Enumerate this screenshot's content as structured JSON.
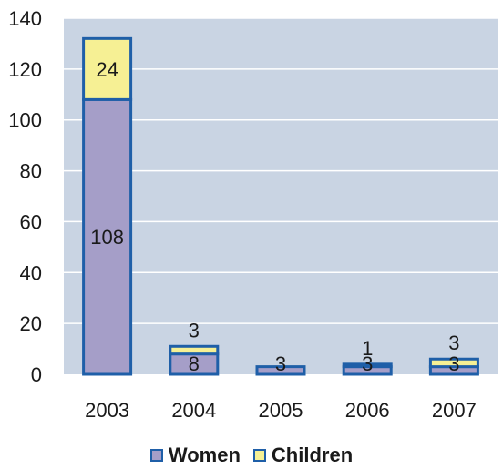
{
  "chart_data": {
    "type": "bar",
    "stacked": true,
    "categories": [
      "2003",
      "2004",
      "2005",
      "2006",
      "2007"
    ],
    "series": [
      {
        "name": "Women",
        "values": [
          108,
          8,
          3,
          3,
          3
        ],
        "color": "#a59ec8"
      },
      {
        "name": "Children",
        "values": [
          24,
          3,
          0,
          1,
          3
        ],
        "color": "#f6f094"
      }
    ],
    "data_labels": [
      {
        "category": "2003",
        "series": "Women",
        "text": "108"
      },
      {
        "category": "2003",
        "series": "Children",
        "text": "24"
      },
      {
        "category": "2004",
        "series": "Women",
        "text": "8"
      },
      {
        "category": "2004",
        "series": "Children",
        "text": "3"
      },
      {
        "category": "2005",
        "series": "Women",
        "text": "3"
      },
      {
        "category": "2006",
        "series": "Women",
        "text": "3"
      },
      {
        "category": "2006",
        "series": "Children",
        "text": "1"
      },
      {
        "category": "2007",
        "series": "Women",
        "text": "3"
      },
      {
        "category": "2007",
        "series": "Children",
        "text": "3"
      }
    ],
    "y_ticks": [
      "0",
      "20",
      "40",
      "60",
      "80",
      "100",
      "120",
      "140"
    ],
    "ylim": [
      0,
      140
    ],
    "grid": true,
    "legend_position": "bottom",
    "plot_background": "#c9d4e3",
    "bar_border": "#1f5fa8",
    "gridline_color": "#ffffff"
  },
  "legend": [
    {
      "label": "Women",
      "color": "#a59ec8"
    },
    {
      "label": "Children",
      "color": "#f6f094"
    }
  ]
}
